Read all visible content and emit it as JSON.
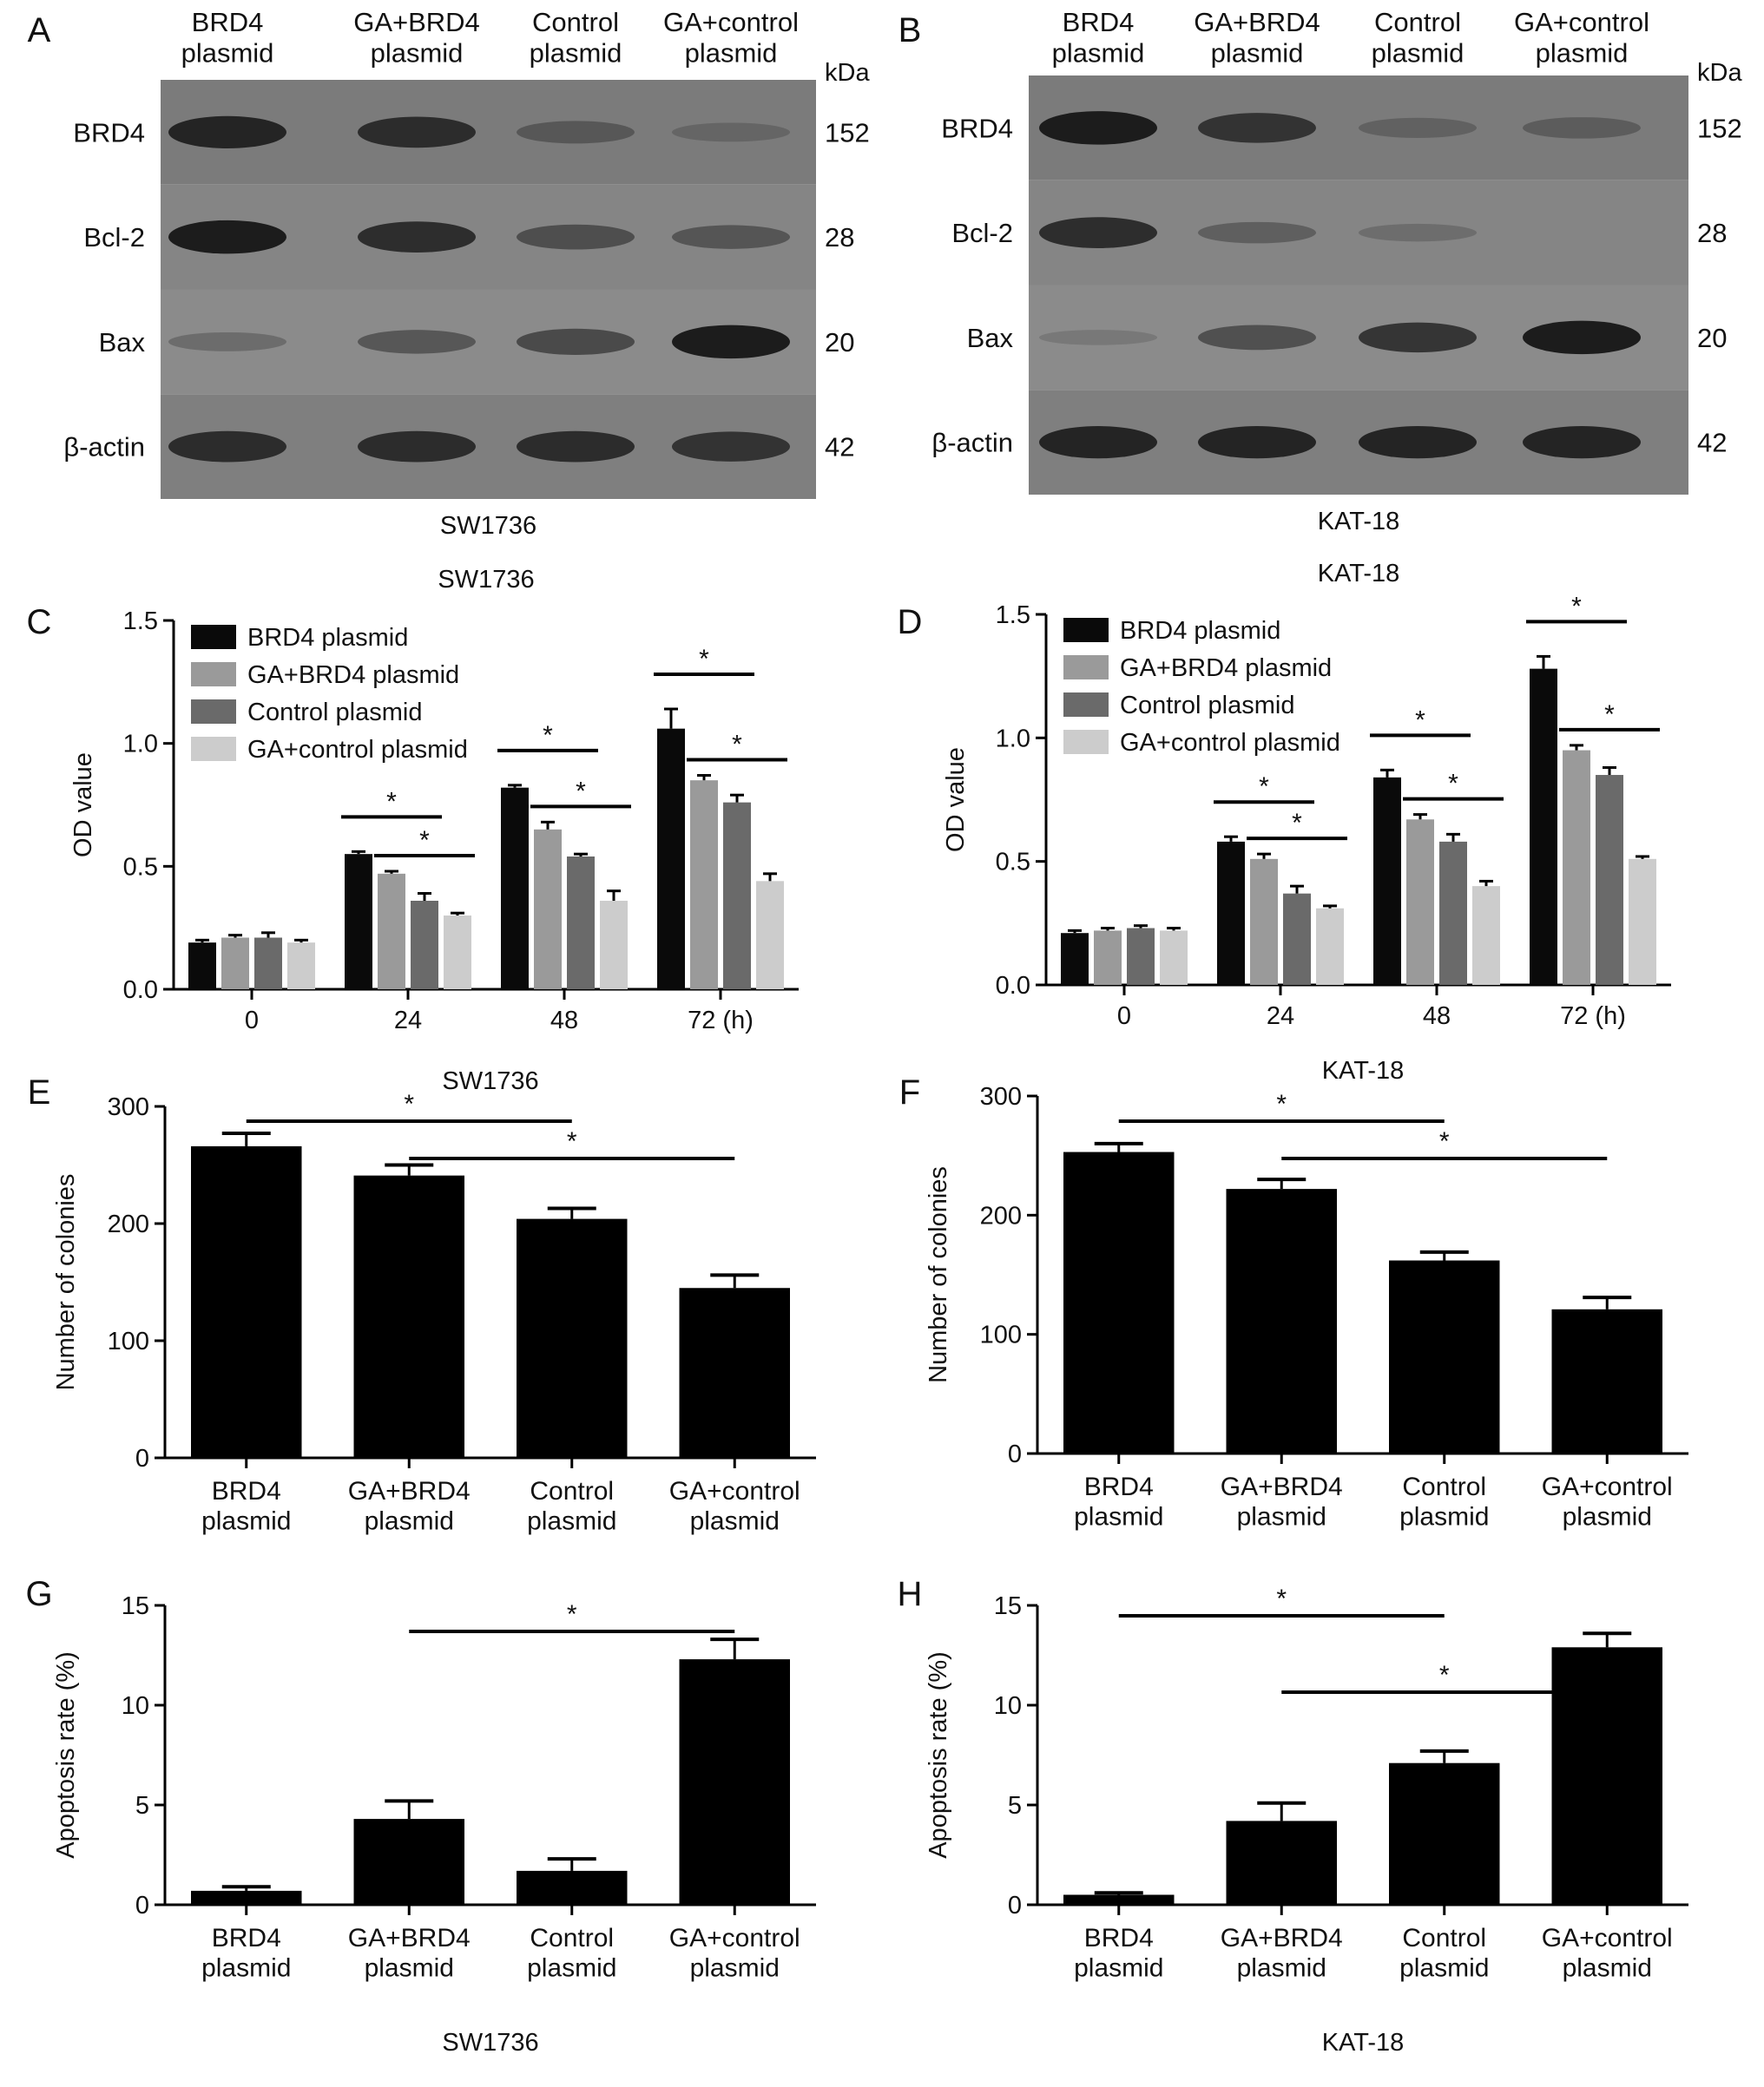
{
  "chart_data": [
    {
      "panel": "A",
      "type": "western-blot",
      "lanes": [
        "BRD4\nplasmid",
        "GA+BRD4\nplasmid",
        "Control\nplasmid",
        "GA+control\nplasmid"
      ],
      "unit": "kDa",
      "rows": [
        {
          "label": "BRD4",
          "kda": "152",
          "intensity": [
            0.9,
            0.85,
            0.5,
            0.35
          ]
        },
        {
          "label": "Bcl-2",
          "kda": "28",
          "intensity": [
            0.95,
            0.85,
            0.6,
            0.55
          ]
        },
        {
          "label": "Bax",
          "kda": "20",
          "intensity": [
            0.35,
            0.55,
            0.65,
            0.95
          ]
        },
        {
          "label": "β-actin",
          "kda": "42",
          "intensity": [
            0.85,
            0.85,
            0.85,
            0.8
          ]
        }
      ],
      "caption": "SW1736"
    },
    {
      "panel": "B",
      "type": "western-blot",
      "lanes": [
        "BRD4\nplasmid",
        "GA+BRD4\nplasmid",
        "Control\nplasmid",
        "GA+control\nplasmid"
      ],
      "unit": "kDa",
      "rows": [
        {
          "label": "BRD4",
          "kda": "152",
          "intensity": [
            0.95,
            0.8,
            0.4,
            0.45
          ]
        },
        {
          "label": "Bcl-2",
          "kda": "28",
          "intensity": [
            0.85,
            0.45,
            0.3,
            0.0
          ]
        },
        {
          "label": "Bax",
          "kda": "20",
          "intensity": [
            0.2,
            0.6,
            0.8,
            0.95
          ]
        },
        {
          "label": "β-actin",
          "kda": "42",
          "intensity": [
            0.9,
            0.9,
            0.9,
            0.9
          ]
        }
      ],
      "caption": "KAT-18"
    },
    {
      "panel": "C",
      "type": "bar",
      "title": "SW1736",
      "ylabel": "OD value",
      "ylim": [
        0,
        1.5
      ],
      "yticks": [
        "0.0",
        "0.5",
        "1.0",
        "1.5"
      ],
      "categories": [
        "0",
        "24",
        "48",
        "72 (h)"
      ],
      "series": [
        {
          "name": "BRD4 plasmid",
          "values": [
            0.19,
            0.55,
            0.82,
            1.06
          ],
          "err": [
            0.01,
            0.01,
            0.01,
            0.08
          ]
        },
        {
          "name": "GA+BRD4 plasmid",
          "values": [
            0.21,
            0.47,
            0.65,
            0.85
          ],
          "err": [
            0.01,
            0.01,
            0.03,
            0.02
          ]
        },
        {
          "name": "Control plasmid",
          "values": [
            0.21,
            0.36,
            0.54,
            0.76
          ],
          "err": [
            0.02,
            0.03,
            0.01,
            0.03
          ]
        },
        {
          "name": "GA+control plasmid",
          "values": [
            0.19,
            0.3,
            0.36,
            0.44
          ],
          "err": [
            0.01,
            0.01,
            0.04,
            0.03
          ]
        }
      ],
      "legend": "top-left",
      "significance": [
        {
          "cat": 1,
          "from": 0,
          "to": 2
        },
        {
          "cat": 1,
          "from": 1,
          "to": 3
        },
        {
          "cat": 2,
          "from": 0,
          "to": 2
        },
        {
          "cat": 2,
          "from": 1,
          "to": 3
        },
        {
          "cat": 3,
          "from": 0,
          "to": 2
        },
        {
          "cat": 3,
          "from": 1,
          "to": 3
        }
      ],
      "star": "*"
    },
    {
      "panel": "D",
      "type": "bar",
      "title": "KAT-18",
      "ylabel": "OD value",
      "ylim": [
        0,
        1.5
      ],
      "yticks": [
        "0.0",
        "0.5",
        "1.0",
        "1.5"
      ],
      "categories": [
        "0",
        "24",
        "48",
        "72 (h)"
      ],
      "series": [
        {
          "name": "BRD4 plasmid",
          "values": [
            0.21,
            0.58,
            0.84,
            1.28
          ],
          "err": [
            0.01,
            0.02,
            0.03,
            0.05
          ]
        },
        {
          "name": "GA+BRD4 plasmid",
          "values": [
            0.22,
            0.51,
            0.67,
            0.95
          ],
          "err": [
            0.01,
            0.02,
            0.02,
            0.02
          ]
        },
        {
          "name": "Control plasmid",
          "values": [
            0.23,
            0.37,
            0.58,
            0.85
          ],
          "err": [
            0.01,
            0.03,
            0.03,
            0.03
          ]
        },
        {
          "name": "GA+control plasmid",
          "values": [
            0.22,
            0.31,
            0.4,
            0.51
          ],
          "err": [
            0.01,
            0.01,
            0.02,
            0.01
          ]
        }
      ],
      "legend": "top-left",
      "significance": [
        {
          "cat": 1,
          "from": 0,
          "to": 2
        },
        {
          "cat": 1,
          "from": 1,
          "to": 3
        },
        {
          "cat": 2,
          "from": 0,
          "to": 2
        },
        {
          "cat": 2,
          "from": 1,
          "to": 3
        },
        {
          "cat": 3,
          "from": 0,
          "to": 2
        },
        {
          "cat": 3,
          "from": 1,
          "to": 3
        }
      ],
      "star": "*"
    },
    {
      "panel": "E",
      "type": "bar",
      "title": "SW1736",
      "ylabel": "Number of colonies",
      "ylim": [
        0,
        300
      ],
      "yticks": [
        "0",
        "100",
        "200",
        "300"
      ],
      "categories": [
        "BRD4\nplasmid",
        "GA+BRD4\nplasmid",
        "Control\nplasmid",
        "GA+control\nplasmid"
      ],
      "values": [
        266,
        241,
        204,
        145
      ],
      "err": [
        11,
        9,
        9,
        11
      ],
      "significance": [
        {
          "from": 0,
          "to": 2
        },
        {
          "from": 1,
          "to": 3
        }
      ],
      "star": "*"
    },
    {
      "panel": "F",
      "type": "bar",
      "title": "KAT-18",
      "ylabel": "Number of colonies",
      "ylim": [
        0,
        300
      ],
      "yticks": [
        "0",
        "100",
        "200",
        "300"
      ],
      "categories": [
        "BRD4\nplasmid",
        "GA+BRD4\nplasmid",
        "Control\nplasmid",
        "GA+control\nplasmid"
      ],
      "values": [
        253,
        222,
        162,
        121
      ],
      "err": [
        7,
        8,
        7,
        10
      ],
      "significance": [
        {
          "from": 0,
          "to": 2
        },
        {
          "from": 1,
          "to": 3
        }
      ],
      "star": "*"
    },
    {
      "panel": "G",
      "type": "bar",
      "title": "",
      "caption": "SW1736",
      "ylabel": "Apoptosis rate (%)",
      "ylim": [
        0,
        15
      ],
      "yticks": [
        "0",
        "5",
        "10",
        "15"
      ],
      "categories": [
        "BRD4\nplasmid",
        "GA+BRD4\nplasmid",
        "Control\nplasmid",
        "GA+control\nplasmid"
      ],
      "values": [
        0.7,
        4.3,
        1.7,
        12.3
      ],
      "err": [
        0.2,
        0.9,
        0.6,
        1.0
      ],
      "significance": [
        {
          "from": 1,
          "to": 3
        }
      ],
      "star": "*"
    },
    {
      "panel": "H",
      "type": "bar",
      "title": "",
      "caption": "KAT-18",
      "ylabel": "Apoptosis rate (%)",
      "ylim": [
        0,
        15
      ],
      "yticks": [
        "0",
        "5",
        "10",
        "15"
      ],
      "categories": [
        "BRD4\nplasmid",
        "GA+BRD4\nplasmid",
        "Control\nplasmid",
        "GA+control\nplasmid"
      ],
      "values": [
        0.5,
        4.2,
        7.1,
        12.9
      ],
      "err": [
        0.1,
        0.9,
        0.6,
        0.7
      ],
      "significance": [
        {
          "from": 0,
          "to": 2
        },
        {
          "from": 1,
          "to": 3
        }
      ],
      "star": "*"
    }
  ],
  "colors": {
    "series": [
      "#0a0a0a",
      "#9a9a9a",
      "#6a6a6a",
      "#cccccc"
    ],
    "bar": "#000000",
    "blot_bg": [
      "#7b7b7b",
      "#858585",
      "#8b8b8b",
      "#7f7f7f"
    ]
  }
}
